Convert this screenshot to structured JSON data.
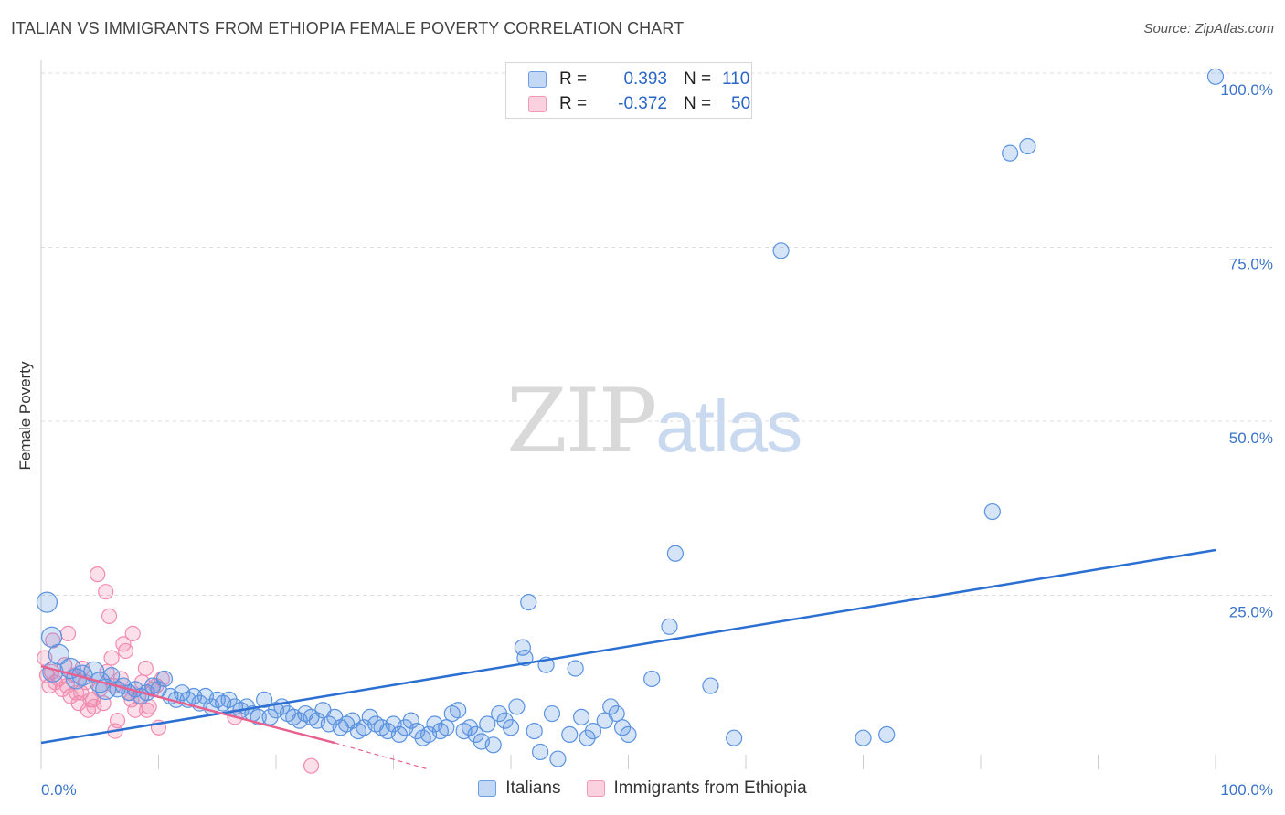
{
  "title": "ITALIAN VS IMMIGRANTS FROM ETHIOPIA FEMALE POVERTY CORRELATION CHART",
  "source": "Source: ZipAtlas.com",
  "watermark": {
    "zip": "ZIP",
    "atlas": "atlas"
  },
  "legend": {
    "r_label": "R =",
    "n_label": "N =",
    "rows": [
      {
        "r": "0.393",
        "n": "110"
      },
      {
        "r": "-0.372",
        "n": "50"
      }
    ]
  },
  "bottom_legend": [
    "Italians",
    "Immigrants from Ethiopia"
  ],
  "chart_data": {
    "type": "scatter",
    "title": "ITALIAN VS IMMIGRANTS FROM ETHIOPIA FEMALE POVERTY CORRELATION CHART",
    "xlabel": "",
    "ylabel": "Female Poverty",
    "xlim": [
      0,
      100
    ],
    "ylim": [
      0,
      100
    ],
    "x_tick_labels": [
      "0.0%",
      "100.0%"
    ],
    "y_ticks": [
      25,
      50,
      75,
      100
    ],
    "y_tick_labels": [
      "25.0%",
      "50.0%",
      "75.0%",
      "100.0%"
    ],
    "grid": "horizontal dashed",
    "legend_position": "top-center",
    "colors": {
      "italians": "#5b93e0",
      "italians_line": "#2a6fd1",
      "ethiopia": "#f28bb0",
      "ethiopia_line": "#e8608f",
      "tick": "#3b74c8"
    },
    "series": [
      {
        "name": "Italians",
        "r": 0.393,
        "n": 110,
        "trend": {
          "x": [
            0,
            100
          ],
          "y": [
            3.8,
            31.5
          ]
        },
        "points": [
          [
            0.5,
            24.0
          ],
          [
            0.9,
            19.0
          ],
          [
            1.5,
            16.5
          ],
          [
            2.5,
            14.5
          ],
          [
            3.5,
            13.5
          ],
          [
            4.5,
            14.0
          ],
          [
            5.0,
            12.5
          ],
          [
            5.5,
            11.5
          ],
          [
            6.0,
            13.5
          ],
          [
            6.5,
            11.5
          ],
          [
            7.0,
            12.0
          ],
          [
            7.5,
            11.0
          ],
          [
            8.0,
            11.5
          ],
          [
            8.5,
            10.5
          ],
          [
            9.0,
            11.0
          ],
          [
            9.5,
            12.0
          ],
          [
            10.0,
            11.5
          ],
          [
            10.5,
            13.0
          ],
          [
            11.0,
            10.5
          ],
          [
            11.5,
            10.0
          ],
          [
            12.0,
            11.0
          ],
          [
            12.5,
            10.0
          ],
          [
            13.0,
            10.5
          ],
          [
            13.5,
            9.5
          ],
          [
            14.0,
            10.5
          ],
          [
            14.5,
            9.0
          ],
          [
            15.0,
            10.0
          ],
          [
            15.5,
            9.5
          ],
          [
            16.0,
            10.0
          ],
          [
            16.5,
            9.0
          ],
          [
            17.0,
            8.5
          ],
          [
            17.5,
            9.0
          ],
          [
            18.0,
            8.0
          ],
          [
            18.5,
            7.5
          ],
          [
            19.0,
            10.0
          ],
          [
            19.5,
            7.5
          ],
          [
            20.0,
            8.5
          ],
          [
            20.5,
            9.0
          ],
          [
            21.0,
            8.0
          ],
          [
            21.5,
            7.5
          ],
          [
            22.0,
            7.0
          ],
          [
            22.5,
            8.0
          ],
          [
            23.0,
            7.5
          ],
          [
            23.5,
            7.0
          ],
          [
            24.0,
            8.5
          ],
          [
            24.5,
            6.5
          ],
          [
            25.0,
            7.5
          ],
          [
            25.5,
            6.0
          ],
          [
            26.0,
            6.5
          ],
          [
            26.5,
            7.0
          ],
          [
            27.0,
            5.5
          ],
          [
            27.5,
            6.0
          ],
          [
            28.0,
            7.5
          ],
          [
            28.5,
            6.5
          ],
          [
            29.0,
            6.0
          ],
          [
            29.5,
            5.5
          ],
          [
            30.0,
            6.5
          ],
          [
            30.5,
            5.0
          ],
          [
            31.0,
            6.0
          ],
          [
            31.5,
            7.0
          ],
          [
            32.0,
            5.5
          ],
          [
            32.5,
            4.5
          ],
          [
            33.0,
            5.0
          ],
          [
            33.5,
            6.5
          ],
          [
            34.0,
            5.5
          ],
          [
            34.5,
            6.0
          ],
          [
            35.0,
            8.0
          ],
          [
            35.5,
            8.5
          ],
          [
            36.0,
            5.5
          ],
          [
            36.5,
            6.0
          ],
          [
            37.0,
            5.0
          ],
          [
            37.5,
            4.0
          ],
          [
            38.0,
            6.5
          ],
          [
            38.5,
            3.5
          ],
          [
            39.0,
            8.0
          ],
          [
            39.5,
            7.0
          ],
          [
            40.0,
            6.0
          ],
          [
            40.5,
            9.0
          ],
          [
            41.0,
            17.5
          ],
          [
            41.2,
            16.0
          ],
          [
            42.0,
            5.5
          ],
          [
            42.5,
            2.5
          ],
          [
            43.0,
            15.0
          ],
          [
            43.5,
            8.0
          ],
          [
            44.0,
            1.5
          ],
          [
            45.0,
            5.0
          ],
          [
            46.0,
            7.5
          ],
          [
            46.5,
            4.5
          ],
          [
            47.0,
            5.5
          ],
          [
            48.0,
            7.0
          ],
          [
            48.5,
            9.0
          ],
          [
            49.0,
            8.0
          ],
          [
            49.5,
            6.0
          ],
          [
            50.0,
            5.0
          ],
          [
            52.0,
            13.0
          ],
          [
            53.5,
            20.5
          ],
          [
            57.0,
            12.0
          ],
          [
            59.0,
            4.5
          ],
          [
            70.0,
            4.5
          ],
          [
            72.0,
            5.0
          ],
          [
            81.0,
            37.0
          ],
          [
            82.5,
            88.5
          ],
          [
            84.0,
            89.5
          ],
          [
            100.0,
            99.5
          ],
          [
            54.0,
            31.0
          ],
          [
            45.5,
            14.5
          ],
          [
            63.0,
            74.5
          ],
          [
            41.5,
            24.0
          ],
          [
            3.0,
            13.0
          ],
          [
            1.0,
            14.0
          ]
        ]
      },
      {
        "name": "Immigrants from Ethiopia",
        "r": -0.372,
        "n": 50,
        "trend": {
          "x": [
            0,
            25
          ],
          "y": [
            14.8,
            3.8
          ]
        },
        "trend_dashed": {
          "x": [
            25,
            33
          ],
          "y": [
            3.8,
            0.0
          ]
        },
        "points": [
          [
            0.3,
            16.0
          ],
          [
            0.5,
            13.5
          ],
          [
            0.7,
            12.0
          ],
          [
            0.9,
            14.0
          ],
          [
            1.2,
            12.5
          ],
          [
            1.5,
            13.0
          ],
          [
            1.8,
            11.5
          ],
          [
            2.0,
            15.0
          ],
          [
            2.2,
            12.0
          ],
          [
            2.5,
            10.5
          ],
          [
            2.8,
            13.5
          ],
          [
            3.0,
            11.0
          ],
          [
            3.2,
            9.5
          ],
          [
            3.5,
            14.5
          ],
          [
            3.8,
            12.5
          ],
          [
            4.0,
            8.5
          ],
          [
            4.2,
            10.0
          ],
          [
            4.5,
            9.0
          ],
          [
            4.8,
            28.0
          ],
          [
            5.0,
            11.5
          ],
          [
            5.3,
            9.5
          ],
          [
            5.5,
            25.5
          ],
          [
            5.8,
            22.0
          ],
          [
            6.0,
            16.0
          ],
          [
            6.3,
            5.5
          ],
          [
            6.5,
            7.0
          ],
          [
            6.8,
            13.0
          ],
          [
            7.0,
            18.0
          ],
          [
            7.2,
            17.0
          ],
          [
            7.5,
            11.0
          ],
          [
            7.8,
            19.5
          ],
          [
            8.0,
            8.5
          ],
          [
            8.3,
            10.5
          ],
          [
            8.6,
            12.5
          ],
          [
            8.9,
            14.5
          ],
          [
            9.2,
            9.0
          ],
          [
            9.5,
            11.5
          ],
          [
            9.8,
            12.0
          ],
          [
            10.0,
            6.0
          ],
          [
            10.3,
            13.0
          ],
          [
            1.0,
            18.5
          ],
          [
            2.3,
            19.5
          ],
          [
            3.4,
            11.0
          ],
          [
            4.4,
            10.0
          ],
          [
            6.2,
            12.0
          ],
          [
            7.7,
            10.0
          ],
          [
            5.6,
            14.0
          ],
          [
            16.5,
            7.5
          ],
          [
            23.0,
            0.5
          ],
          [
            9.0,
            8.5
          ]
        ]
      }
    ]
  }
}
